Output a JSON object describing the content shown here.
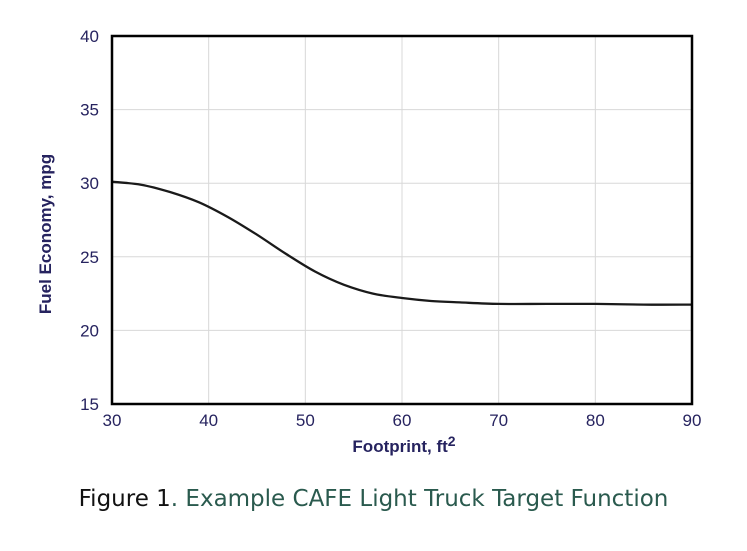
{
  "chart_data": {
    "type": "line",
    "xlabel": "Footprint, ft",
    "xlabel_sup": "2",
    "ylabel": "Fuel Economy, mpg",
    "xlim": [
      30,
      90
    ],
    "ylim": [
      15,
      40
    ],
    "xticks": [
      30,
      40,
      50,
      60,
      70,
      80,
      90
    ],
    "yticks": [
      15,
      20,
      25,
      30,
      35,
      40
    ],
    "grid": true,
    "series": [
      {
        "color": "#1a1a1a",
        "x": [
          30,
          33,
          36,
          39,
          42,
          45,
          48,
          51,
          54,
          57,
          60,
          63,
          66,
          70,
          75,
          80,
          85,
          90
        ],
        "y": [
          30.1,
          29.9,
          29.4,
          28.7,
          27.7,
          26.5,
          25.2,
          24.0,
          23.1,
          22.5,
          22.2,
          22.0,
          21.9,
          21.8,
          21.8,
          21.8,
          21.75,
          21.75
        ]
      }
    ]
  },
  "caption": {
    "figure": "Figure 1",
    "text": ". Example CAFE Light Truck Target Function"
  }
}
